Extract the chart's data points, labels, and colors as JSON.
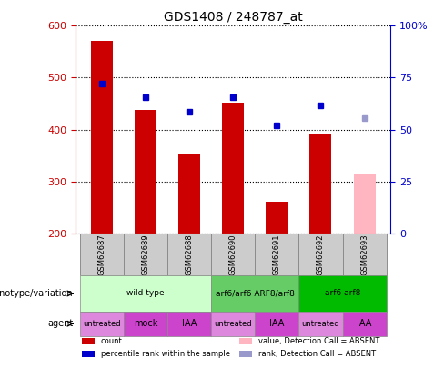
{
  "title": "GDS1408 / 248787_at",
  "samples": [
    "GSM62687",
    "GSM62689",
    "GSM62688",
    "GSM62690",
    "GSM62691",
    "GSM62692",
    "GSM62693"
  ],
  "bar_values": [
    570,
    438,
    352,
    452,
    261,
    392,
    null
  ],
  "bar_colors": [
    "#cc0000",
    "#cc0000",
    "#cc0000",
    "#cc0000",
    "#cc0000",
    "#cc0000",
    "#ffb6c1"
  ],
  "absent_bar_value": 314,
  "rank_values": [
    488,
    462,
    435,
    463,
    408,
    447,
    null
  ],
  "rank_absent_value": 422,
  "ylim_left": [
    200,
    600
  ],
  "ylim_right": [
    0,
    100
  ],
  "yticks_left": [
    200,
    300,
    400,
    500,
    600
  ],
  "yticks_right": [
    0,
    25,
    50,
    75,
    100
  ],
  "ytick_right_labels": [
    "0",
    "25",
    "50",
    "75",
    "100%"
  ],
  "dot_color": "#0000cc",
  "dot_absent_color": "#9999cc",
  "genotype_groups": [
    {
      "label": "wild type",
      "start": 0,
      "end": 3,
      "color": "#ccffcc"
    },
    {
      "label": "arf6/arf6 ARF8/arf8",
      "start": 3,
      "end": 5,
      "color": "#66cc66"
    },
    {
      "label": "arf6 arf8",
      "start": 5,
      "end": 7,
      "color": "#00bb00"
    }
  ],
  "agent_groups": [
    {
      "label": "untreated",
      "start": 0,
      "end": 1,
      "color": "#dd88dd"
    },
    {
      "label": "mock",
      "start": 1,
      "end": 2,
      "color": "#cc44cc"
    },
    {
      "label": "IAA",
      "start": 2,
      "end": 3,
      "color": "#cc44cc"
    },
    {
      "label": "untreated",
      "start": 3,
      "end": 4,
      "color": "#dd88dd"
    },
    {
      "label": "IAA",
      "start": 4,
      "end": 5,
      "color": "#cc44cc"
    },
    {
      "label": "untreated",
      "start": 5,
      "end": 6,
      "color": "#dd88dd"
    },
    {
      "label": "IAA",
      "start": 6,
      "end": 7,
      "color": "#cc44cc"
    }
  ],
  "legend_items": [
    {
      "label": "count",
      "color": "#cc0000",
      "type": "square"
    },
    {
      "label": "percentile rank within the sample",
      "color": "#0000cc",
      "type": "square"
    },
    {
      "label": "value, Detection Call = ABSENT",
      "color": "#ffb6c1",
      "type": "square"
    },
    {
      "label": "rank, Detection Call = ABSENT",
      "color": "#9999cc",
      "type": "square"
    }
  ],
  "left_axis_color": "#cc0000",
  "right_axis_color": "#0000cc",
  "sample_box_color": "#cccccc",
  "genotype_label": "genotype/variation",
  "agent_label": "agent",
  "bar_width": 0.5
}
